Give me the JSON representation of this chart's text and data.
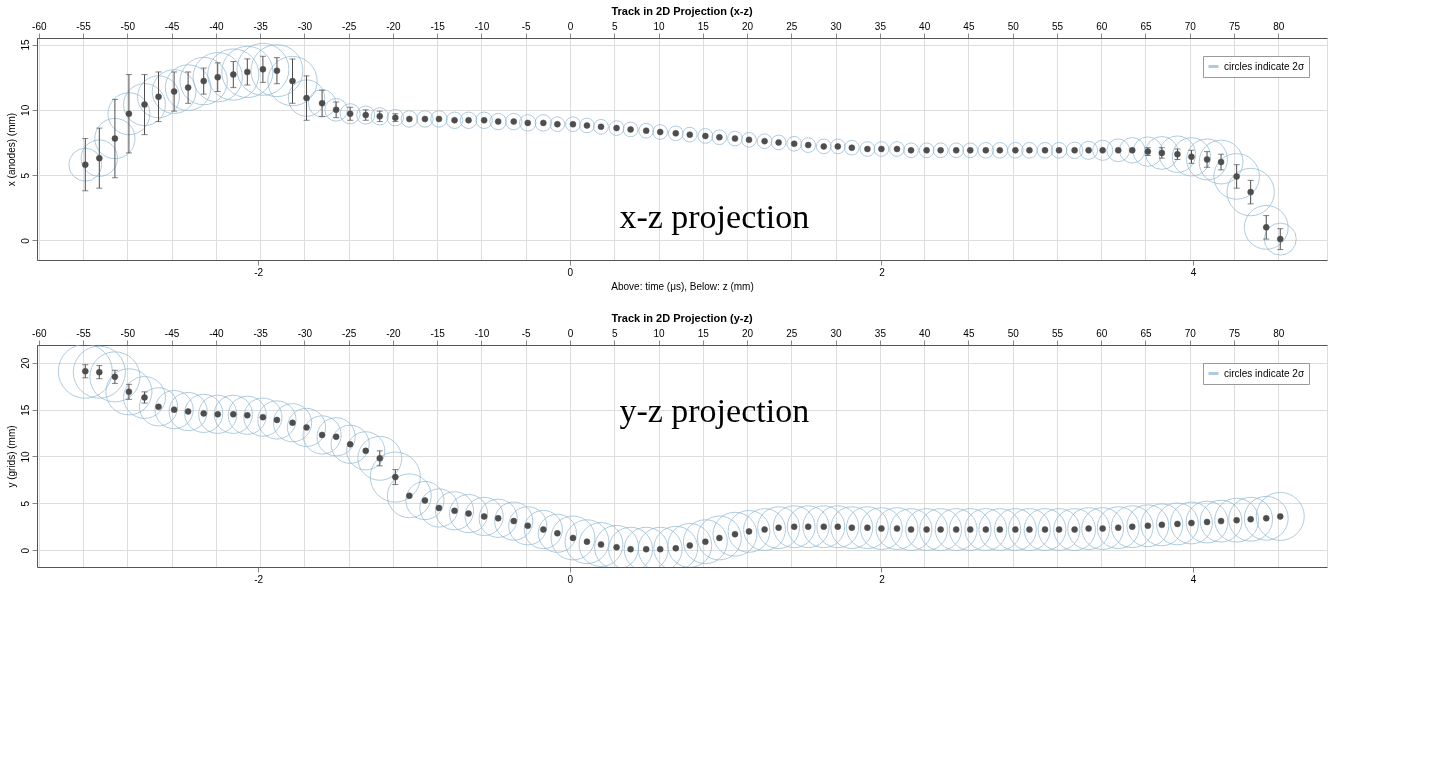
{
  "chart_data": [
    {
      "type": "scatter",
      "title": "Track in 2D Projection (x-z)",
      "xlabel": "Above: time (μs), Below: z (mm)",
      "ylabel": "x (anodes) (mm)",
      "annotations": [
        "x-z projection"
      ],
      "x": [
        -3.11,
        -3.02,
        -2.92,
        -2.83,
        -2.73,
        -2.64,
        -2.54,
        -2.45,
        -2.35,
        -2.26,
        -2.16,
        -2.07,
        -1.97,
        -1.88,
        -1.78,
        -1.69,
        -1.59,
        -1.5,
        -1.41,
        -1.31,
        -1.22,
        -1.12,
        -1.03,
        -0.93,
        -0.84,
        -0.74,
        -0.65,
        -0.55,
        -0.46,
        -0.36,
        -0.27,
        -0.17,
        -0.08,
        0.02,
        0.11,
        0.2,
        0.3,
        0.39,
        0.49,
        0.58,
        0.68,
        0.77,
        0.87,
        0.96,
        1.06,
        1.15,
        1.25,
        1.34,
        1.44,
        1.53,
        1.63,
        1.72,
        1.81,
        1.91,
        2.0,
        2.1,
        2.19,
        2.29,
        2.38,
        2.48,
        2.57,
        2.67,
        2.76,
        2.86,
        2.95,
        3.05,
        3.14,
        3.24,
        3.33,
        3.42,
        3.52,
        3.61,
        3.71,
        3.8,
        3.9,
        3.99,
        4.09,
        4.18,
        4.28,
        4.37,
        4.47,
        4.56
      ],
      "series": [
        {
          "type": "bubble",
          "name": "circles indicate 2σ",
          "color": "#8db6d0",
          "values": [
            5.8,
            6.3,
            7.8,
            9.7,
            10.4,
            11.0,
            11.4,
            11.7,
            12.2,
            12.5,
            12.7,
            12.9,
            13.1,
            13.0,
            12.2,
            10.9,
            10.5,
            10.0,
            9.7,
            9.6,
            9.5,
            9.4,
            9.3,
            9.3,
            9.3,
            9.2,
            9.2,
            9.2,
            9.1,
            9.1,
            9.0,
            9.0,
            8.9,
            8.9,
            8.8,
            8.7,
            8.6,
            8.5,
            8.4,
            8.3,
            8.2,
            8.1,
            8.0,
            7.9,
            7.8,
            7.7,
            7.6,
            7.5,
            7.4,
            7.3,
            7.2,
            7.2,
            7.1,
            7.0,
            7.0,
            7.0,
            6.9,
            6.9,
            6.9,
            6.9,
            6.9,
            6.9,
            6.9,
            6.9,
            6.9,
            6.9,
            6.9,
            6.9,
            6.9,
            6.9,
            6.9,
            6.9,
            6.8,
            6.7,
            6.6,
            6.4,
            6.2,
            6.0,
            4.9,
            3.7,
            1.0,
            0.1
          ],
          "sizes": [
            0.4,
            0.49,
            0.6,
            0.65,
            0.65,
            0.65,
            0.71,
            0.77,
            0.83,
            0.9,
            0.97,
            0.97,
            1,
            1,
            0.9,
            0.49,
            0.28,
            0.19,
            0.15,
            0.12,
            0.11,
            0.1,
            0.1,
            0.1,
            0.1,
            0.1,
            0.1,
            0.1,
            0.1,
            0.1,
            0.1,
            0.1,
            0.08,
            0.08,
            0.08,
            0.08,
            0.08,
            0.08,
            0.08,
            0.08,
            0.08,
            0.08,
            0.08,
            0.08,
            0.08,
            0.08,
            0.08,
            0.08,
            0.08,
            0.08,
            0.08,
            0.08,
            0.08,
            0.08,
            0.08,
            0.08,
            0.08,
            0.08,
            0.08,
            0.08,
            0.08,
            0.09,
            0.09,
            0.09,
            0.09,
            0.09,
            0.09,
            0.1,
            0.12,
            0.15,
            0.19,
            0.24,
            0.32,
            0.4,
            0.49,
            0.54,
            0.62,
            0.71,
            0.77,
            0.83,
            0.71,
            0.38
          ]
        },
        {
          "type": "scatter",
          "color": "#4d4d4d",
          "values": [
            5.8,
            6.3,
            7.8,
            9.7,
            10.4,
            11.0,
            11.4,
            11.7,
            12.2,
            12.5,
            12.7,
            12.9,
            13.1,
            13.0,
            12.2,
            10.9,
            10.5,
            10.0,
            9.7,
            9.6,
            9.5,
            9.4,
            9.3,
            9.3,
            9.3,
            9.2,
            9.2,
            9.2,
            9.1,
            9.1,
            9.0,
            9.0,
            8.9,
            8.9,
            8.8,
            8.7,
            8.6,
            8.5,
            8.4,
            8.3,
            8.2,
            8.1,
            8.0,
            7.9,
            7.8,
            7.7,
            7.6,
            7.5,
            7.4,
            7.3,
            7.2,
            7.2,
            7.1,
            7.0,
            7.0,
            7.0,
            6.9,
            6.9,
            6.9,
            6.9,
            6.9,
            6.9,
            6.9,
            6.9,
            6.9,
            6.9,
            6.9,
            6.9,
            6.9,
            6.9,
            6.9,
            6.9,
            6.8,
            6.7,
            6.6,
            6.4,
            6.2,
            6.0,
            4.9,
            3.7,
            1.0,
            0.1
          ],
          "errors": [
            2.0,
            2.3,
            3.0,
            3.0,
            2.3,
            1.9,
            1.5,
            1.2,
            1.0,
            1.1,
            1.0,
            1.0,
            1.0,
            1.0,
            1.7,
            1.7,
            1.0,
            0.6,
            0.5,
            0.4,
            0.4,
            0.3,
            null,
            null,
            null,
            null,
            null,
            null,
            null,
            null,
            null,
            null,
            null,
            null,
            null,
            null,
            null,
            null,
            null,
            null,
            null,
            null,
            null,
            null,
            null,
            null,
            null,
            null,
            null,
            null,
            null,
            null,
            null,
            null,
            null,
            null,
            null,
            null,
            null,
            null,
            null,
            null,
            null,
            null,
            null,
            null,
            null,
            null,
            null,
            null,
            null,
            null,
            0.3,
            0.4,
            0.4,
            0.5,
            0.6,
            0.6,
            0.9,
            0.9,
            0.9,
            0.8
          ]
        }
      ],
      "xlim": [
        -3.42,
        4.86
      ],
      "xticks": [
        -2,
        0,
        2,
        4
      ],
      "x2lim": [
        -60.2,
        85.5
      ],
      "x2ticks": [
        -60,
        -55,
        -50,
        -45,
        -40,
        -35,
        -30,
        -25,
        -20,
        -15,
        -10,
        -5,
        0,
        5,
        10,
        15,
        20,
        25,
        30,
        35,
        40,
        45,
        50,
        55,
        60,
        65,
        70,
        75,
        80
      ],
      "ylim": [
        -1.5,
        15.5
      ],
      "yticks": [
        0,
        5,
        10,
        15
      ],
      "grid": true,
      "legend": "top right",
      "marker": "circle"
    },
    {
      "type": "scatter",
      "title": "Track in 2D Projection (y-z)",
      "ylabel": "y (grids) (mm)",
      "annotations": [
        "y-z projection"
      ],
      "x": [
        -3.11,
        -3.02,
        -2.92,
        -2.83,
        -2.73,
        -2.64,
        -2.54,
        -2.45,
        -2.35,
        -2.26,
        -2.16,
        -2.07,
        -1.97,
        -1.88,
        -1.78,
        -1.69,
        -1.59,
        -1.5,
        -1.41,
        -1.31,
        -1.22,
        -1.12,
        -1.03,
        -0.93,
        -0.84,
        -0.74,
        -0.65,
        -0.55,
        -0.46,
        -0.36,
        -0.27,
        -0.17,
        -0.08,
        0.02,
        0.11,
        0.2,
        0.3,
        0.39,
        0.49,
        0.58,
        0.68,
        0.77,
        0.87,
        0.96,
        1.06,
        1.15,
        1.25,
        1.34,
        1.44,
        1.53,
        1.63,
        1.72,
        1.81,
        1.91,
        2.0,
        2.1,
        2.19,
        2.29,
        2.38,
        2.48,
        2.57,
        2.67,
        2.76,
        2.86,
        2.95,
        3.05,
        3.14,
        3.24,
        3.33,
        3.42,
        3.52,
        3.61,
        3.71,
        3.8,
        3.9,
        3.99,
        4.09,
        4.18,
        4.28,
        4.37,
        4.47,
        4.56
      ],
      "series": [
        {
          "type": "bubble",
          "name": "circles indicate 2σ",
          "color": "#8db6d0",
          "values": [
            19.1,
            19.0,
            18.5,
            16.9,
            16.3,
            15.3,
            15.0,
            14.8,
            14.6,
            14.5,
            14.5,
            14.4,
            14.2,
            13.9,
            13.6,
            13.1,
            12.3,
            12.1,
            11.3,
            10.6,
            9.8,
            7.8,
            5.8,
            5.3,
            4.5,
            4.2,
            3.9,
            3.6,
            3.4,
            3.1,
            2.6,
            2.2,
            1.8,
            1.3,
            0.9,
            0.6,
            0.3,
            0.1,
            0.1,
            0.1,
            0.2,
            0.5,
            0.9,
            1.3,
            1.7,
            2.0,
            2.2,
            2.4,
            2.5,
            2.5,
            2.5,
            2.5,
            2.4,
            2.4,
            2.3,
            2.3,
            2.2,
            2.2,
            2.2,
            2.2,
            2.2,
            2.2,
            2.2,
            2.2,
            2.2,
            2.2,
            2.2,
            2.2,
            2.3,
            2.3,
            2.4,
            2.5,
            2.6,
            2.7,
            2.8,
            2.9,
            3.0,
            3.1,
            3.2,
            3.3,
            3.4,
            3.6
          ],
          "sizes": [
            1,
            0.93,
            0.86,
            0.73,
            0.6,
            0.5,
            0.5,
            0.5,
            0.5,
            0.5,
            0.5,
            0.5,
            0.5,
            0.5,
            0.5,
            0.5,
            0.5,
            0.5,
            0.5,
            0.5,
            0.66,
            0.86,
            0.66,
            0.5,
            0.5,
            0.5,
            0.5,
            0.5,
            0.5,
            0.5,
            0.5,
            0.5,
            0.5,
            0.66,
            0.66,
            0.66,
            0.66,
            0.66,
            0.66,
            0.66,
            0.66,
            0.66,
            0.66,
            0.66,
            0.66,
            0.6,
            0.6,
            0.6,
            0.6,
            0.6,
            0.6,
            0.6,
            0.6,
            0.6,
            0.6,
            0.6,
            0.6,
            0.6,
            0.6,
            0.6,
            0.6,
            0.6,
            0.6,
            0.6,
            0.6,
            0.6,
            0.6,
            0.6,
            0.6,
            0.6,
            0.6,
            0.6,
            0.6,
            0.6,
            0.6,
            0.6,
            0.6,
            0.6,
            0.66,
            0.66,
            0.66,
            0.79
          ]
        },
        {
          "type": "scatter",
          "color": "#4d4d4d",
          "values": [
            19.1,
            19.0,
            18.5,
            16.9,
            16.3,
            15.3,
            15.0,
            14.8,
            14.6,
            14.5,
            14.5,
            14.4,
            14.2,
            13.9,
            13.6,
            13.1,
            12.3,
            12.1,
            11.3,
            10.6,
            9.8,
            7.8,
            5.8,
            5.3,
            4.5,
            4.2,
            3.9,
            3.6,
            3.4,
            3.1,
            2.6,
            2.2,
            1.8,
            1.3,
            0.9,
            0.6,
            0.3,
            0.1,
            0.1,
            0.1,
            0.2,
            0.5,
            0.9,
            1.3,
            1.7,
            2.0,
            2.2,
            2.4,
            2.5,
            2.5,
            2.5,
            2.5,
            2.4,
            2.4,
            2.3,
            2.3,
            2.2,
            2.2,
            2.2,
            2.2,
            2.2,
            2.2,
            2.2,
            2.2,
            2.2,
            2.2,
            2.2,
            2.2,
            2.3,
            2.3,
            2.4,
            2.5,
            2.6,
            2.7,
            2.8,
            2.9,
            3.0,
            3.1,
            3.2,
            3.3,
            3.4,
            3.6
          ],
          "errors": [
            0.7,
            0.7,
            0.7,
            0.8,
            0.6,
            null,
            null,
            null,
            null,
            null,
            null,
            null,
            null,
            null,
            null,
            null,
            null,
            null,
            null,
            null,
            0.8,
            0.8,
            null,
            null,
            null,
            null,
            null,
            null,
            null,
            null,
            null,
            null,
            null,
            null,
            null,
            null,
            null,
            null,
            null,
            null,
            null,
            null,
            null,
            null,
            null,
            null,
            null,
            null,
            null,
            null,
            null,
            null,
            null,
            null,
            null,
            null,
            null,
            null,
            null,
            null,
            null,
            null,
            null,
            null,
            null,
            null,
            null,
            null,
            null,
            null,
            null,
            null,
            null,
            null,
            null,
            null,
            null,
            null,
            null,
            null,
            null,
            null
          ]
        }
      ],
      "xlim": [
        -3.42,
        4.86
      ],
      "xticks": [
        -2,
        0,
        2,
        4
      ],
      "x2lim": [
        -60.2,
        85.5
      ],
      "x2ticks": [
        -60,
        -55,
        -50,
        -45,
        -40,
        -35,
        -30,
        -25,
        -20,
        -15,
        -10,
        -5,
        0,
        5,
        10,
        15,
        20,
        25,
        30,
        35,
        40,
        45,
        50,
        55,
        60,
        65,
        70,
        75,
        80
      ],
      "ylim": [
        -1.8,
        21.9
      ],
      "yticks": [
        0,
        5,
        10,
        15,
        20
      ],
      "grid": true,
      "legend": "top right",
      "marker": "circle"
    }
  ]
}
